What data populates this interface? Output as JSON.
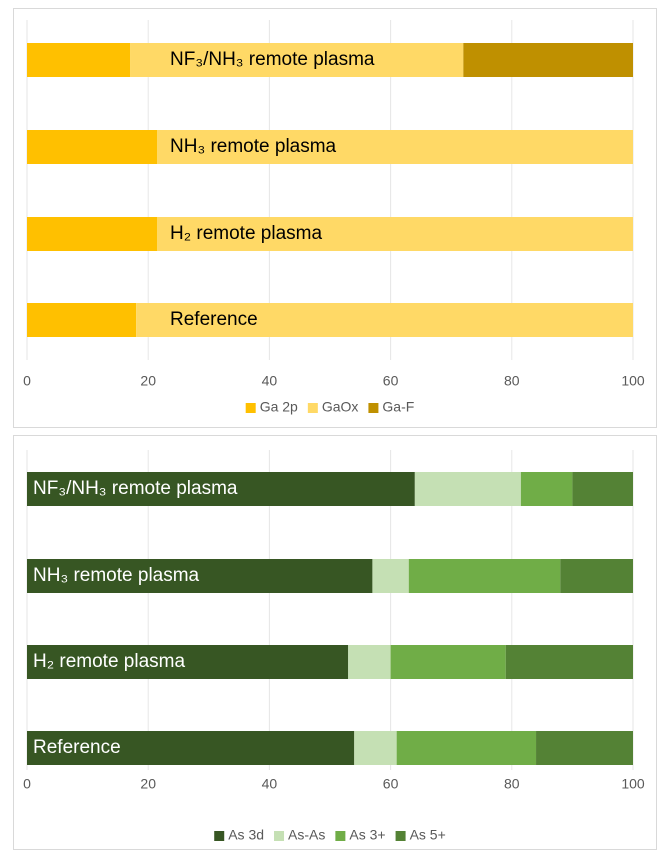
{
  "chart_data": [
    {
      "type": "bar",
      "orientation": "horizontal",
      "stacked": true,
      "categories": [
        "NF₃/NH₃ remote plasma",
        "NH₃ remote plasma",
        "H₂ remote plasma",
        "Reference"
      ],
      "series": [
        {
          "name": "Ga 2p",
          "color": "#ffc000",
          "values": [
            17,
            21.5,
            21.5,
            18
          ]
        },
        {
          "name": "GaOx",
          "color": "#ffd966",
          "values": [
            55,
            78.5,
            78.5,
            82
          ]
        },
        {
          "name": "Ga-F",
          "color": "#bf9000",
          "values": [
            28,
            0,
            0,
            0
          ]
        }
      ],
      "xlim": [
        0,
        100
      ],
      "xticks": [
        0,
        20,
        40,
        60,
        80,
        100
      ],
      "grid": true,
      "legend": "bottom"
    },
    {
      "type": "bar",
      "orientation": "horizontal",
      "stacked": true,
      "categories": [
        "NF₃/NH₃ remote plasma",
        "NH₃ remote plasma",
        "H₂ remote plasma",
        "Reference"
      ],
      "series": [
        {
          "name": "As 3d",
          "color": "#375623",
          "values": [
            64,
            57,
            53,
            54
          ]
        },
        {
          "name": "As-As",
          "color": "#c5e0b4",
          "values": [
            17.5,
            6,
            7,
            7
          ]
        },
        {
          "name": "As 3+",
          "color": "#70ad47",
          "values": [
            8.5,
            25,
            19,
            23
          ]
        },
        {
          "name": "As 5+",
          "color": "#548235",
          "values": [
            10,
            12,
            21,
            16
          ]
        }
      ],
      "xlim": [
        0,
        100
      ],
      "xticks": [
        0,
        20,
        40,
        60,
        80,
        100
      ],
      "grid": true,
      "legend": "bottom"
    }
  ]
}
